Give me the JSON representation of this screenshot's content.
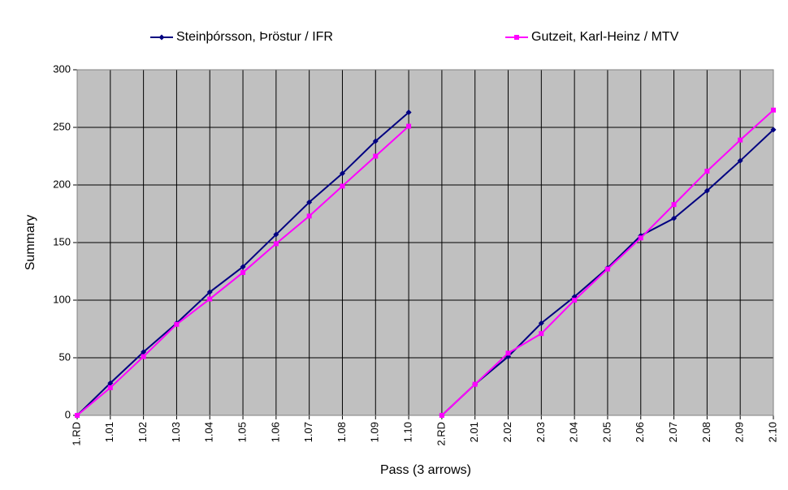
{
  "chart_data": {
    "type": "line",
    "x_label": "Pass (3 arrows)",
    "y_label": "Summary",
    "categories": [
      "1.RD",
      "1.01",
      "1.02",
      "1.03",
      "1.04",
      "1.05",
      "1.06",
      "1.07",
      "1.08",
      "1.09",
      "1.10",
      "2.RD",
      "2.01",
      "2.02",
      "2.03",
      "2.04",
      "2.05",
      "2.06",
      "2.07",
      "2.08",
      "2.09",
      "2.10"
    ],
    "series": [
      {
        "name": "Steinþórsson, Þröstur / IFR",
        "color": "#000080",
        "marker": "diamond",
        "values": [
          0,
          28,
          55,
          80,
          107,
          129,
          157,
          185,
          210,
          238,
          263,
          0,
          27,
          51,
          80,
          103,
          128,
          156,
          171,
          195,
          221,
          248
        ]
      },
      {
        "name": "Gutzeit, Karl-Heinz / MTV",
        "color": "#ff00ff",
        "marker": "square",
        "values": [
          0,
          24,
          51,
          79,
          101,
          124,
          149,
          173,
          199,
          225,
          251,
          0,
          27,
          54,
          71,
          100,
          127,
          154,
          183,
          212,
          239,
          265
        ]
      }
    ],
    "ylim": [
      0,
      300
    ],
    "yticks": [
      0,
      50,
      100,
      150,
      200,
      250,
      300
    ],
    "grid": true,
    "legend": "top"
  }
}
